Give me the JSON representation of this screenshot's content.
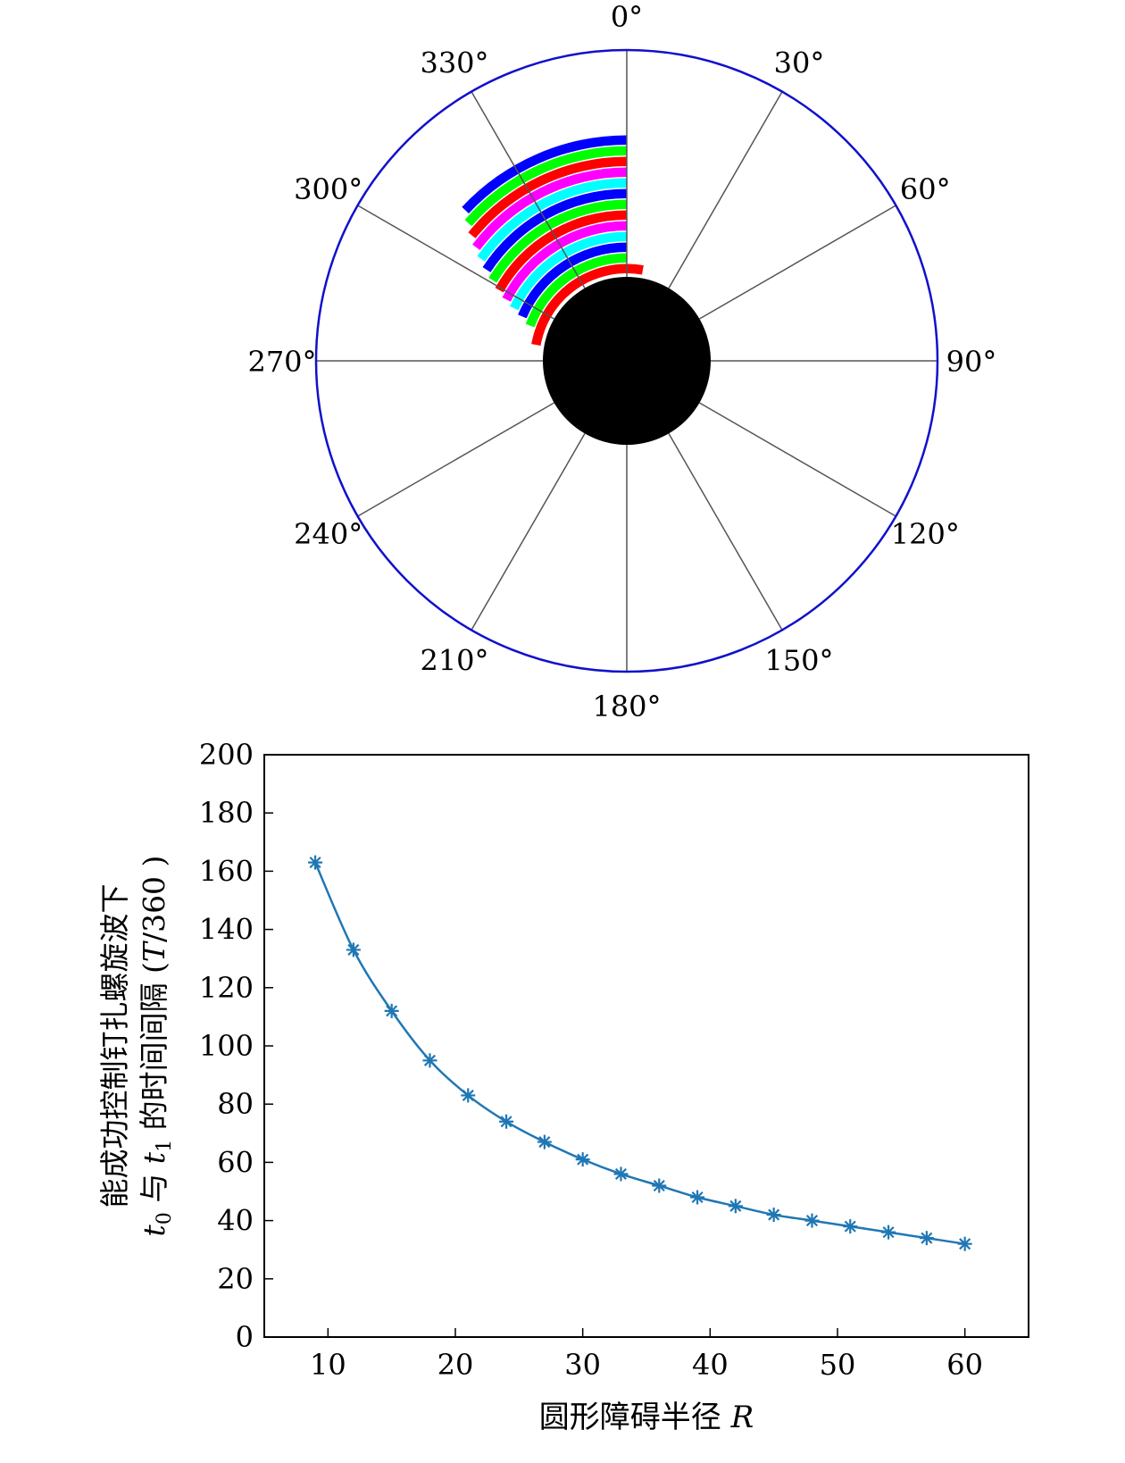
{
  "chart_data": [
    {
      "type": "polar",
      "angle_labels": [
        "0°",
        "30°",
        "60°",
        "90°",
        "120°",
        "150°",
        "180°",
        "210°",
        "240°",
        "270°",
        "300°",
        "330°"
      ],
      "angles_deg": [
        0,
        30,
        60,
        90,
        120,
        150,
        180,
        210,
        240,
        270,
        300,
        330
      ],
      "grid": true,
      "colors": {
        "outer_circle": "#1010cc",
        "spokes": "#555555",
        "obstacle": "#000000"
      },
      "bands": [
        {
          "color": "#ff0000",
          "start_deg": 280,
          "end_deg": 370
        },
        {
          "color": "#00ff00",
          "start_deg": 290,
          "end_deg": 360
        },
        {
          "color": "#0000ff",
          "start_deg": 293,
          "end_deg": 360
        },
        {
          "color": "#00ffff",
          "start_deg": 295,
          "end_deg": 360
        },
        {
          "color": "#ff00ff",
          "start_deg": 297,
          "end_deg": 360
        },
        {
          "color": "#ff0000",
          "start_deg": 299,
          "end_deg": 360
        },
        {
          "color": "#00ff00",
          "start_deg": 301,
          "end_deg": 360
        },
        {
          "color": "#0000ff",
          "start_deg": 303,
          "end_deg": 360
        },
        {
          "color": "#00ffff",
          "start_deg": 305,
          "end_deg": 360
        },
        {
          "color": "#ff00ff",
          "start_deg": 307,
          "end_deg": 360
        },
        {
          "color": "#ff0000",
          "start_deg": 309,
          "end_deg": 360
        },
        {
          "color": "#00ff00",
          "start_deg": 311,
          "end_deg": 360
        },
        {
          "color": "#0000ff",
          "start_deg": 313,
          "end_deg": 360
        }
      ]
    },
    {
      "type": "line",
      "x": [
        9,
        12,
        15,
        18,
        21,
        24,
        27,
        30,
        33,
        36,
        39,
        42,
        45,
        48,
        51,
        54,
        57,
        60
      ],
      "y": [
        163,
        133,
        112,
        95,
        83,
        74,
        67,
        61,
        56,
        52,
        48,
        45,
        42,
        40,
        38,
        36,
        34,
        32
      ],
      "xlim": [
        5,
        65
      ],
      "ylim": [
        0,
        200
      ],
      "xticks": [
        "10",
        "20",
        "30",
        "40",
        "50",
        "60"
      ],
      "xtick_values": [
        10,
        20,
        30,
        40,
        50,
        60
      ],
      "yticks": [
        "0",
        "20",
        "40",
        "60",
        "80",
        "100",
        "120",
        "140",
        "160",
        "180",
        "200"
      ],
      "ytick_values": [
        0,
        20,
        40,
        60,
        80,
        100,
        120,
        140,
        160,
        180,
        200
      ],
      "xlabel_text": "圆形障碍半径 ",
      "xlabel_var": "R",
      "ylabel_line1": "能成功控制钉扎螺旋波下",
      "ylabel_line2": {
        "t0_base": "t",
        "t0_sub": "0",
        "mid": " 与 ",
        "t1_base": "t",
        "t1_sub": "1",
        "tail": " 的时间间隔 (",
        "T": "T",
        "unit": "/360 )"
      },
      "marker": "asterisk",
      "color": "#1f77b4"
    }
  ]
}
